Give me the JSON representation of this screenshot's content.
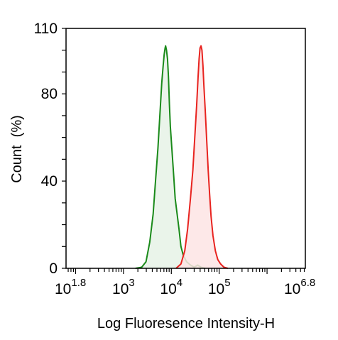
{
  "chart_data": {
    "type": "area",
    "title": "",
    "xlabel": "Log Fluoresence Intensity-H",
    "ylabel": "Count  (%)",
    "xscale": "log",
    "xlim_log10": [
      1.8,
      6.8
    ],
    "ylim": [
      0,
      110
    ],
    "grid": false,
    "legend": "none",
    "x_ticks": [
      {
        "base": "10",
        "exp": "1.8",
        "log10": 1.8
      },
      {
        "base": "10",
        "exp": "3",
        "log10": 3
      },
      {
        "base": "10",
        "exp": "4",
        "log10": 4
      },
      {
        "base": "10",
        "exp": "5",
        "log10": 5
      },
      {
        "base": "10",
        "exp": "6.8",
        "log10": 6.8
      }
    ],
    "y_ticks": [
      {
        "label": "0",
        "value": 0
      },
      {
        "label": "40",
        "value": 40
      },
      {
        "label": "80",
        "value": 80
      },
      {
        "label": "110",
        "value": 110
      }
    ],
    "series": [
      {
        "color": "#1a8a1a",
        "fill": "#e6f2e6",
        "x_log10": [
          3.25,
          3.38,
          3.47,
          3.55,
          3.62,
          3.67,
          3.72,
          3.76,
          3.8,
          3.83,
          3.85,
          3.87,
          3.88,
          3.9,
          3.92,
          3.94,
          3.96,
          3.98,
          4.01,
          4.05,
          4.08,
          4.12,
          4.16,
          4.2,
          4.25,
          4.32,
          4.4,
          4.48,
          4.55,
          4.62,
          4.7
        ],
        "y": [
          0,
          0.5,
          3,
          12,
          25,
          40,
          55,
          70,
          85,
          93,
          98,
          101,
          102,
          100,
          96,
          88,
          75,
          65,
          55,
          42,
          32,
          25,
          18,
          10,
          6,
          3,
          1.5,
          0.5,
          1.5,
          0.5,
          0
        ]
      },
      {
        "color": "#e8231f",
        "fill": "#fde4e4",
        "x_log10": [
          4.1,
          4.2,
          4.28,
          4.34,
          4.4,
          4.45,
          4.49,
          4.53,
          4.56,
          4.58,
          4.6,
          4.62,
          4.64,
          4.66,
          4.68,
          4.71,
          4.74,
          4.77,
          4.8,
          4.83,
          4.87,
          4.92,
          4.97,
          5.03,
          5.1,
          5.18
        ],
        "y": [
          0,
          2,
          8,
          18,
          32,
          45,
          60,
          75,
          88,
          96,
          101,
          102,
          100,
          93,
          84,
          72,
          58,
          45,
          34,
          24,
          15,
          8,
          4,
          2,
          0.5,
          0
        ]
      }
    ]
  }
}
